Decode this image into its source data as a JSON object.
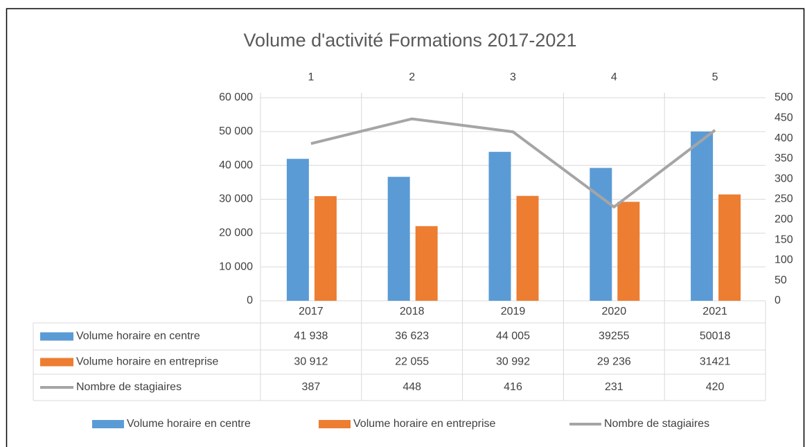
{
  "chart_data": {
    "type": "bar",
    "title": "Volume d'activité Formations 2017-2021",
    "categories": [
      "2017",
      "2018",
      "2019",
      "2020",
      "2021"
    ],
    "x2categories": [
      "1",
      "2",
      "3",
      "4",
      "5"
    ],
    "series": [
      {
        "name": "Volume horaire en centre",
        "color": "#5b9bd5",
        "type": "bar",
        "values": [
          41938,
          36623,
          44005,
          39255,
          50018
        ],
        "value_labels": [
          "41 938",
          "36 623",
          "44 005",
          "39255",
          "50018"
        ]
      },
      {
        "name": "Volume horaire en entreprise",
        "color": "#ed7d31",
        "type": "bar",
        "values": [
          30912,
          22055,
          30992,
          29236,
          31421
        ],
        "value_labels": [
          "30 912",
          "22 055",
          "30 992",
          "29 236",
          "31421"
        ]
      },
      {
        "name": "Nombre de stagiaires",
        "color": "#a5a5a5",
        "type": "line",
        "axis": "y2",
        "values": [
          387,
          448,
          416,
          231,
          420
        ]
      }
    ],
    "ylim": [
      0,
      60000
    ],
    "yticks": [
      0,
      {
        "value": 10000,
        "label": "10 000"
      },
      {
        "value": 20000,
        "label": "20 000"
      },
      {
        "value": 30000,
        "label": "30 000"
      },
      {
        "value": 40000,
        "label": "40 000"
      },
      {
        "value": 50000,
        "label": "50 000"
      },
      {
        "value": 60000,
        "label": "60 000"
      }
    ],
    "y2lim": [
      0,
      500
    ],
    "y2ticks": [
      0,
      50,
      100,
      150,
      200,
      250,
      300,
      350,
      400,
      450,
      500
    ],
    "grid": true,
    "legend": "bottom"
  }
}
